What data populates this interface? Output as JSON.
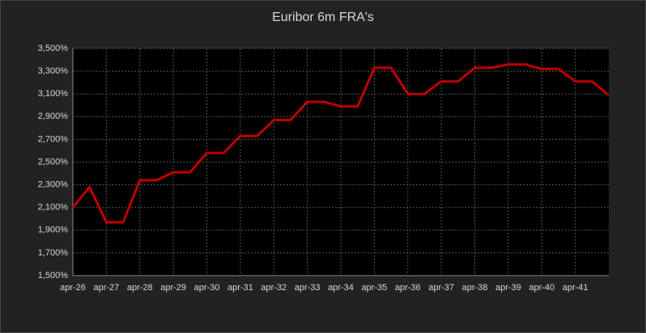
{
  "chart_data": {
    "type": "line",
    "title": "Euribor 6m FRA's",
    "categories": [
      "apr-26",
      null,
      "apr-27",
      null,
      "apr-28",
      null,
      "apr-29",
      null,
      "apr-30",
      null,
      "apr-31",
      null,
      "apr-32",
      null,
      "apr-33",
      null,
      "apr-34",
      null,
      "apr-35",
      null,
      "apr-36",
      null,
      "apr-37",
      null,
      "apr-38",
      null,
      "apr-39",
      null,
      "apr-40",
      null,
      "apr-41",
      null,
      null
    ],
    "series": [
      {
        "color": "#c00000",
        "values": [
          2.1,
          2.28,
          1.97,
          1.97,
          2.34,
          2.34,
          2.41,
          2.41,
          2.58,
          2.58,
          2.73,
          2.73,
          2.87,
          2.87,
          3.03,
          3.03,
          2.99,
          2.99,
          3.33,
          3.33,
          3.1,
          3.1,
          3.21,
          3.21,
          3.33,
          3.33,
          3.36,
          3.36,
          3.32,
          3.32,
          3.21,
          3.21,
          3.09
        ]
      }
    ],
    "ylim": [
      1.5,
      3.5
    ],
    "yticks": [
      {
        "value": 1.5,
        "label": "1,500%"
      },
      {
        "value": 1.7,
        "label": "1,700%"
      },
      {
        "value": 1.9,
        "label": "1,900%"
      },
      {
        "value": 2.1,
        "label": "2,100%"
      },
      {
        "value": 2.3,
        "label": "2,300%"
      },
      {
        "value": 2.5,
        "label": "2,500%"
      },
      {
        "value": 2.7,
        "label": "2,700%"
      },
      {
        "value": 2.9,
        "label": "2,900%"
      },
      {
        "value": 3.1,
        "label": "3,100%"
      },
      {
        "value": 3.3,
        "label": "3,300%"
      },
      {
        "value": 3.5,
        "label": "3,500%"
      }
    ],
    "grid": true
  }
}
